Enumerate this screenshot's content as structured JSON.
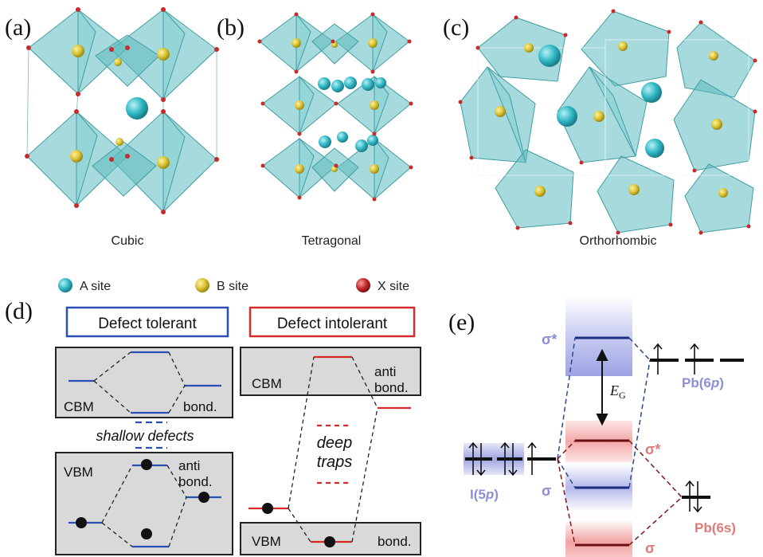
{
  "panels": {
    "a": "(a)",
    "b": "(b)",
    "c": "(c)",
    "d": "(d)",
    "e": "(e)"
  },
  "structures": [
    "Cubic",
    "Tetragonal",
    "Orthorhombic"
  ],
  "legend": {
    "a_site": "A site",
    "b_site": "B site",
    "x_site": "X site",
    "colors": {
      "a": "#2fb7c4",
      "b": "#d9c235",
      "x": "#c62a2a"
    }
  },
  "panel_d": {
    "tolerant": {
      "title": "Defect tolerant",
      "cbm": "CBM",
      "bond": "bond.",
      "shallow": "shallow defects",
      "vbm": "VBM",
      "anti": "anti",
      "anti_bond": "bond."
    },
    "intolerant": {
      "title": "Defect intolerant",
      "cbm": "CBM",
      "anti": "anti",
      "anti_bond": "bond.",
      "deep": "deep",
      "traps": "traps",
      "vbm": "VBM",
      "bond": "bond."
    },
    "colors": {
      "tolerant": "#2a4fb5",
      "intolerant": "#d42a2a"
    }
  },
  "panel_e": {
    "sigma_star_top": "σ*",
    "eg": "E",
    "eg_sub": "G",
    "pb6p": "Pb(6",
    "pb6p_orb": "p",
    "i5p": "I(5",
    "i5p_orb": "p",
    "sigma_left": "σ",
    "sigma_star_mid": "σ*",
    "pb6s": "Pb(6s)",
    "sigma_bottom": "σ",
    "close_paren": ")",
    "colors": {
      "blue": "#8a8fd6",
      "red": "#e07a7a",
      "dark_red": "#7a1a1a"
    }
  }
}
